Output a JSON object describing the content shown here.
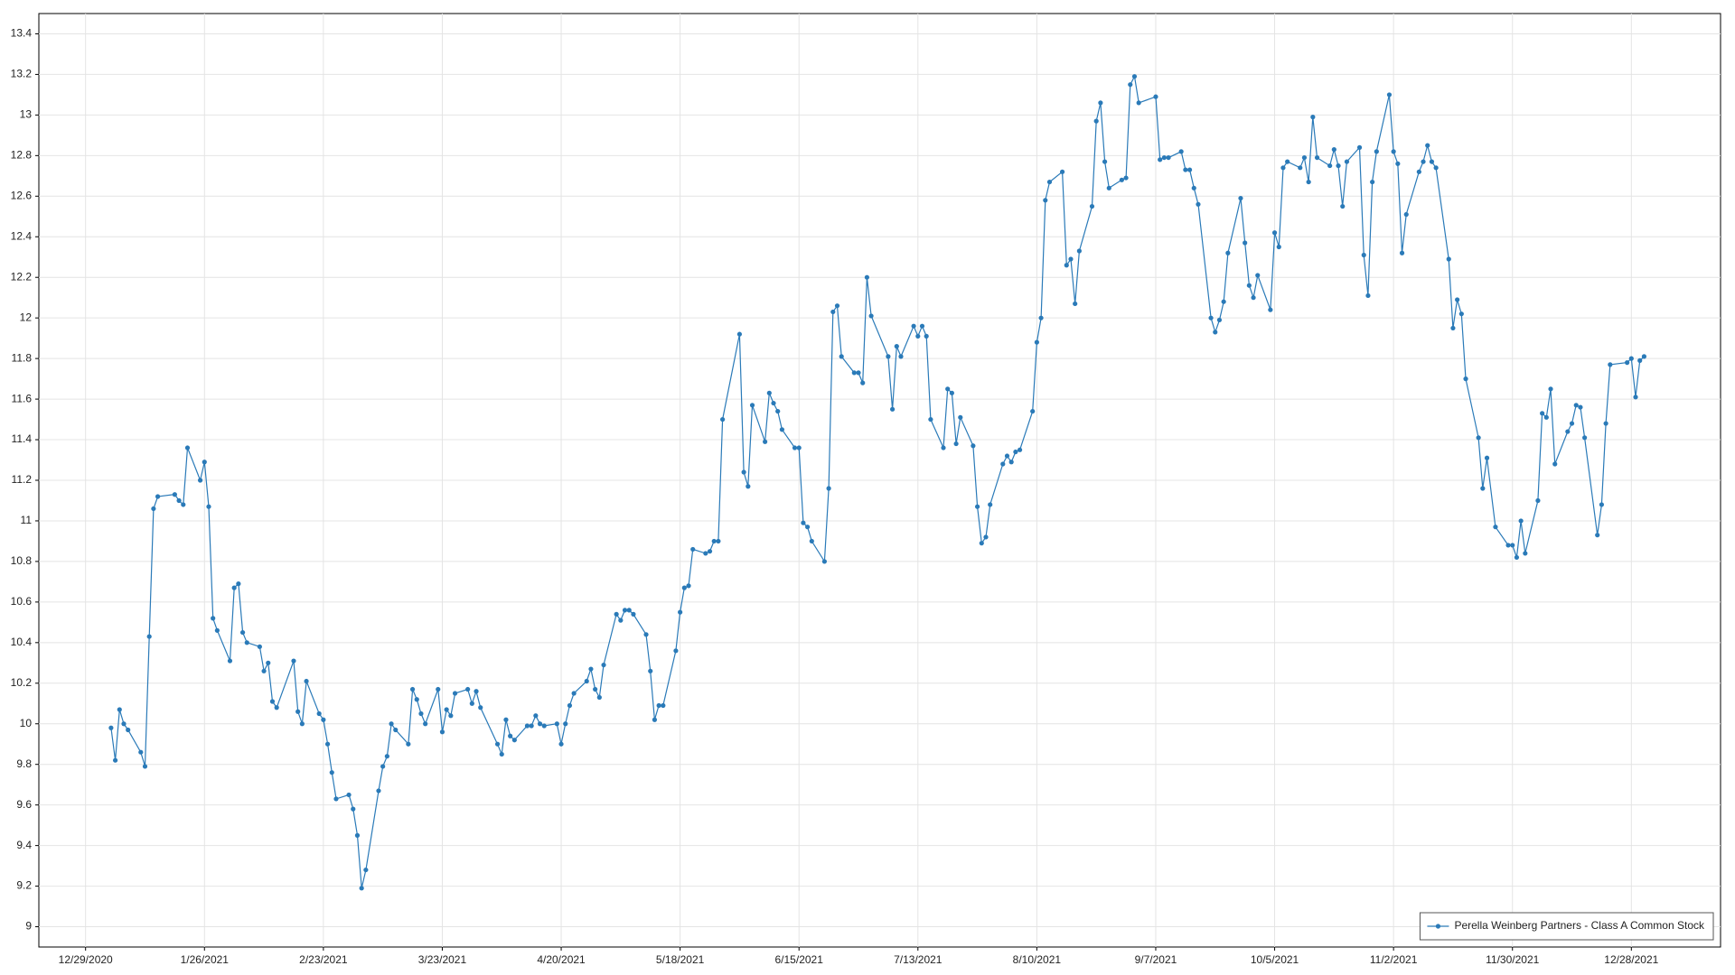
{
  "chart_data": {
    "type": "line",
    "x": [
      "1/4/2021",
      "1/5/2021",
      "1/6/2021",
      "1/7/2021",
      "1/8/2021",
      "1/11/2021",
      "1/12/2021",
      "1/13/2021",
      "1/14/2021",
      "1/15/2021",
      "1/19/2021",
      "1/20/2021",
      "1/21/2021",
      "1/22/2021",
      "1/25/2021",
      "1/26/2021",
      "1/27/2021",
      "1/28/2021",
      "1/29/2021",
      "2/1/2021",
      "2/2/2021",
      "2/3/2021",
      "2/4/2021",
      "2/5/2021",
      "2/8/2021",
      "2/9/2021",
      "2/10/2021",
      "2/11/2021",
      "2/12/2021",
      "2/16/2021",
      "2/17/2021",
      "2/18/2021",
      "2/19/2021",
      "2/22/2021",
      "2/23/2021",
      "2/24/2021",
      "2/25/2021",
      "2/26/2021",
      "3/1/2021",
      "3/2/2021",
      "3/3/2021",
      "3/4/2021",
      "3/5/2021",
      "3/8/2021",
      "3/9/2021",
      "3/10/2021",
      "3/11/2021",
      "3/12/2021",
      "3/15/2021",
      "3/16/2021",
      "3/17/2021",
      "3/18/2021",
      "3/19/2021",
      "3/22/2021",
      "3/23/2021",
      "3/24/2021",
      "3/25/2021",
      "3/26/2021",
      "3/29/2021",
      "3/30/2021",
      "3/31/2021",
      "4/1/2021",
      "4/5/2021",
      "4/6/2021",
      "4/7/2021",
      "4/8/2021",
      "4/9/2021",
      "4/12/2021",
      "4/13/2021",
      "4/14/2021",
      "4/15/2021",
      "4/16/2021",
      "4/19/2021",
      "4/20/2021",
      "4/21/2021",
      "4/22/2021",
      "4/23/2021",
      "4/26/2021",
      "4/27/2021",
      "4/28/2021",
      "4/29/2021",
      "4/30/2021",
      "5/3/2021",
      "5/4/2021",
      "5/5/2021",
      "5/6/2021",
      "5/7/2021",
      "5/10/2021",
      "5/11/2021",
      "5/12/2021",
      "5/13/2021",
      "5/14/2021",
      "5/17/2021",
      "5/18/2021",
      "5/19/2021",
      "5/20/2021",
      "5/21/2021",
      "5/24/2021",
      "5/25/2021",
      "5/26/2021",
      "5/27/2021",
      "5/28/2021",
      "6/1/2021",
      "6/2/2021",
      "6/3/2021",
      "6/4/2021",
      "6/7/2021",
      "6/8/2021",
      "6/9/2021",
      "6/10/2021",
      "6/11/2021",
      "6/14/2021",
      "6/15/2021",
      "6/16/2021",
      "6/17/2021",
      "6/18/2021",
      "6/21/2021",
      "6/22/2021",
      "6/23/2021",
      "6/24/2021",
      "6/25/2021",
      "6/28/2021",
      "6/29/2021",
      "6/30/2021",
      "7/1/2021",
      "7/2/2021",
      "7/6/2021",
      "7/7/2021",
      "7/8/2021",
      "7/9/2021",
      "7/12/2021",
      "7/13/2021",
      "7/14/2021",
      "7/15/2021",
      "7/16/2021",
      "7/19/2021",
      "7/20/2021",
      "7/21/2021",
      "7/22/2021",
      "7/23/2021",
      "7/26/2021",
      "7/27/2021",
      "7/28/2021",
      "7/29/2021",
      "7/30/2021",
      "8/2/2021",
      "8/3/2021",
      "8/4/2021",
      "8/5/2021",
      "8/6/2021",
      "8/9/2021",
      "8/10/2021",
      "8/11/2021",
      "8/12/2021",
      "8/13/2021",
      "8/16/2021",
      "8/17/2021",
      "8/18/2021",
      "8/19/2021",
      "8/20/2021",
      "8/23/2021",
      "8/24/2021",
      "8/25/2021",
      "8/26/2021",
      "8/27/2021",
      "8/30/2021",
      "8/31/2021",
      "9/1/2021",
      "9/2/2021",
      "9/3/2021",
      "9/7/2021",
      "9/8/2021",
      "9/9/2021",
      "9/10/2021",
      "9/13/2021",
      "9/14/2021",
      "9/15/2021",
      "9/16/2021",
      "9/17/2021",
      "9/20/2021",
      "9/21/2021",
      "9/22/2021",
      "9/23/2021",
      "9/24/2021",
      "9/27/2021",
      "9/28/2021",
      "9/29/2021",
      "9/30/2021",
      "10/1/2021",
      "10/4/2021",
      "10/5/2021",
      "10/6/2021",
      "10/7/2021",
      "10/8/2021",
      "10/11/2021",
      "10/12/2021",
      "10/13/2021",
      "10/14/2021",
      "10/15/2021",
      "10/18/2021",
      "10/19/2021",
      "10/20/2021",
      "10/21/2021",
      "10/22/2021",
      "10/25/2021",
      "10/26/2021",
      "10/27/2021",
      "10/28/2021",
      "10/29/2021",
      "11/1/2021",
      "11/2/2021",
      "11/3/2021",
      "11/4/2021",
      "11/5/2021",
      "11/8/2021",
      "11/9/2021",
      "11/10/2021",
      "11/11/2021",
      "11/12/2021",
      "11/15/2021",
      "11/16/2021",
      "11/17/2021",
      "11/18/2021",
      "11/19/2021",
      "11/22/2021",
      "11/23/2021",
      "11/24/2021",
      "11/26/2021",
      "11/29/2021",
      "11/30/2021",
      "12/1/2021",
      "12/2/2021",
      "12/3/2021",
      "12/6/2021",
      "12/7/2021",
      "12/8/2021",
      "12/9/2021",
      "12/10/2021",
      "12/13/2021",
      "12/14/2021",
      "12/15/2021",
      "12/16/2021",
      "12/17/2021",
      "12/20/2021",
      "12/21/2021",
      "12/22/2021",
      "12/23/2021",
      "12/27/2021",
      "12/28/2021",
      "12/29/2021",
      "12/30/2021",
      "12/31/2021"
    ],
    "series": [
      {
        "name": "Perella Weinberg Partners - Class A Common Stock",
        "color": "#2a7ab8",
        "values": [
          9.98,
          9.82,
          10.07,
          10.0,
          9.97,
          9.86,
          9.79,
          10.43,
          11.06,
          11.12,
          11.13,
          11.1,
          11.08,
          11.36,
          11.2,
          11.29,
          11.07,
          10.52,
          10.46,
          10.31,
          10.67,
          10.69,
          10.45,
          10.4,
          10.38,
          10.26,
          10.3,
          10.11,
          10.08,
          10.31,
          10.06,
          10.0,
          10.21,
          10.05,
          10.02,
          9.9,
          9.76,
          9.63,
          9.65,
          9.58,
          9.45,
          9.19,
          9.28,
          9.67,
          9.79,
          9.84,
          10.0,
          9.97,
          9.9,
          10.17,
          10.12,
          10.05,
          10.0,
          10.17,
          9.96,
          10.07,
          10.04,
          10.15,
          10.17,
          10.1,
          10.16,
          10.08,
          9.9,
          9.85,
          10.02,
          9.94,
          9.92,
          9.99,
          9.99,
          10.04,
          10.0,
          9.99,
          10.0,
          9.9,
          10.0,
          10.09,
          10.15,
          10.21,
          10.27,
          10.17,
          10.13,
          10.29,
          10.54,
          10.51,
          10.56,
          10.56,
          10.54,
          10.44,
          10.26,
          10.02,
          10.09,
          10.09,
          10.36,
          10.55,
          10.67,
          10.68,
          10.86,
          10.84,
          10.85,
          10.9,
          10.9,
          11.5,
          11.92,
          11.24,
          11.17,
          11.57,
          11.39,
          11.63,
          11.58,
          11.54,
          11.45,
          11.36,
          11.36,
          10.99,
          10.97,
          10.9,
          10.8,
          11.16,
          12.03,
          12.06,
          11.81,
          11.73,
          11.73,
          11.68,
          12.2,
          12.01,
          11.81,
          11.55,
          11.86,
          11.81,
          11.96,
          11.91,
          11.96,
          11.91,
          11.5,
          11.36,
          11.65,
          11.63,
          11.38,
          11.51,
          11.37,
          11.07,
          10.89,
          10.92,
          11.08,
          11.28,
          11.32,
          11.29,
          11.34,
          11.35,
          11.54,
          11.88,
          12.0,
          12.58,
          12.67,
          12.72,
          12.26,
          12.29,
          12.07,
          12.33,
          12.55,
          12.97,
          13.06,
          12.77,
          12.64,
          12.68,
          12.69,
          13.15,
          13.19,
          13.06,
          13.09,
          12.78,
          12.79,
          12.79,
          12.82,
          12.73,
          12.73,
          12.64,
          12.56,
          12.0,
          11.93,
          11.99,
          12.08,
          12.32,
          12.59,
          12.37,
          12.16,
          12.1,
          12.21,
          12.04,
          12.42,
          12.35,
          12.74,
          12.77,
          12.74,
          12.79,
          12.67,
          12.99,
          12.79,
          12.75,
          12.83,
          12.75,
          12.55,
          12.77,
          12.84,
          12.31,
          12.11,
          12.67,
          12.82,
          13.1,
          12.82,
          12.76,
          12.32,
          12.51,
          12.72,
          12.77,
          12.85,
          12.77,
          12.74,
          12.29,
          11.95,
          12.09,
          12.02,
          11.7,
          11.41,
          11.16,
          11.31,
          10.97,
          10.88,
          10.88,
          10.82,
          11.0,
          10.84,
          11.1,
          11.53,
          11.51,
          11.65,
          11.28,
          11.44,
          11.48,
          11.57,
          11.56,
          11.41,
          10.93,
          11.08,
          11.48,
          11.77,
          11.78,
          11.8,
          11.61,
          11.79,
          11.81
        ]
      }
    ],
    "xlim": [
      "12/18/2020",
      "1/18/2022"
    ],
    "xticks": [
      "12/29/2020",
      "1/26/2021",
      "2/23/2021",
      "3/23/2021",
      "4/20/2021",
      "5/18/2021",
      "6/15/2021",
      "7/13/2021",
      "8/10/2021",
      "9/7/2021",
      "10/5/2021",
      "11/2/2021",
      "11/30/2021",
      "12/28/2021"
    ],
    "ylim": [
      8.9,
      13.5
    ],
    "yticks": [
      9,
      9.2,
      9.4,
      9.6,
      9.8,
      10,
      10.2,
      10.4,
      10.6,
      10.8,
      11,
      11.2,
      11.4,
      11.6,
      11.8,
      12,
      12.2,
      12.4,
      12.6,
      12.8,
      13,
      13.2,
      13.4
    ],
    "grid": true,
    "legend": "lower right"
  }
}
